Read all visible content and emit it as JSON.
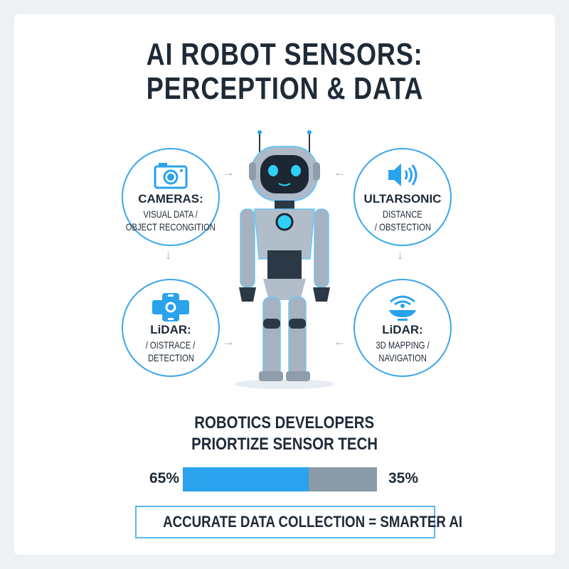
{
  "title": {
    "line1": "AI ROBOT SENSORS:",
    "line2": "PERCEPTION & DATA"
  },
  "sensors": [
    {
      "icon": "camera-icon",
      "heading": "CAMERAS:",
      "line1": "VISUAL DATA /",
      "line2": "OBJECT RECONGITION"
    },
    {
      "icon": "speaker-icon",
      "heading": "ULTARSONIC",
      "line1": "DISTANCE",
      "line2": "/ OBSTECTION"
    },
    {
      "icon": "lidar-module-icon",
      "heading": "LiDAR:",
      "line1": "/ OISTRACE /",
      "line2": "DETECTION"
    },
    {
      "icon": "radar-sensor-icon",
      "heading": "LiDAR:",
      "line1": "3D MAPPING /",
      "line2": "NAVIGATION"
    }
  ],
  "stat": {
    "line1": "ROBOTICS DEVELOPERS",
    "line2": "PRIORTIZE SENSOR TECH",
    "left_label": "65%",
    "right_label": "35%",
    "left_value": 65,
    "right_value": 35
  },
  "banner": "ACCURATE DATA COLLECTION = SMARTER AI",
  "colors": {
    "accent": "#2aa2ec",
    "secondary": "#8a9aa6",
    "text": "#1f2a37"
  }
}
